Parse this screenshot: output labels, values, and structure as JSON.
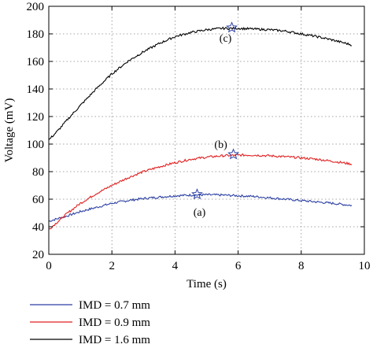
{
  "chart_data": {
    "type": "line",
    "xlabel": "Time (s)",
    "ylabel": "Voltage (mV)",
    "xlim": [
      0,
      10
    ],
    "ylim": [
      20,
      200
    ],
    "xticks": [
      "0",
      "2",
      "4",
      "6",
      "8",
      "10"
    ],
    "yticks": [
      "20",
      "40",
      "60",
      "80",
      "100",
      "120",
      "140",
      "160",
      "180",
      "200"
    ],
    "grid": true,
    "legend_position": "below",
    "series": [
      {
        "name": "IMD = 0.7 mm",
        "color": "#2b3fa3",
        "x": [
          0,
          0.3,
          0.6,
          1.0,
          1.5,
          2.0,
          2.5,
          3.0,
          3.5,
          4.0,
          4.5,
          5.0,
          5.5,
          6.0,
          6.5,
          7.0,
          7.5,
          8.0,
          8.5,
          9.0,
          9.6
        ],
        "y": [
          44,
          46,
          48,
          51,
          54,
          57,
          59,
          60.5,
          61.5,
          62.5,
          63,
          63.2,
          63,
          62.5,
          62,
          61,
          60,
          59,
          58,
          57,
          55.5
        ],
        "peak": {
          "x": 4.7,
          "y": 63.5
        },
        "annotation": "(a)"
      },
      {
        "name": "IMD = 0.9 mm",
        "color": "#e02020",
        "x": [
          0,
          0.3,
          0.6,
          1.0,
          1.5,
          2.0,
          2.5,
          3.0,
          3.5,
          4.0,
          4.5,
          5.0,
          5.5,
          6.0,
          6.5,
          7.0,
          7.5,
          8.0,
          8.5,
          9.0,
          9.6
        ],
        "y": [
          38,
          44,
          50,
          57,
          64,
          70,
          75.5,
          80,
          83.5,
          86.5,
          89,
          90.5,
          91.5,
          92,
          92,
          91.5,
          90.8,
          90,
          89,
          87.5,
          85.5
        ],
        "peak": {
          "x": 5.85,
          "y": 92.5
        },
        "annotation": "(b)"
      },
      {
        "name": "IMD = 1.6 mm",
        "color": "#000000",
        "x": [
          0,
          0.3,
          0.6,
          1.0,
          1.5,
          2.0,
          2.5,
          3.0,
          3.5,
          4.0,
          4.5,
          5.0,
          5.5,
          6.0,
          6.5,
          7.0,
          7.5,
          8.0,
          8.5,
          9.0,
          9.6
        ],
        "y": [
          103,
          110,
          118,
          128,
          140,
          151,
          160,
          167,
          173,
          178,
          181,
          183,
          184,
          184,
          183.5,
          183,
          182,
          180,
          178,
          175.5,
          172
        ],
        "peak": {
          "x": 5.8,
          "y": 184.5
        },
        "annotation": "(c)"
      }
    ]
  }
}
